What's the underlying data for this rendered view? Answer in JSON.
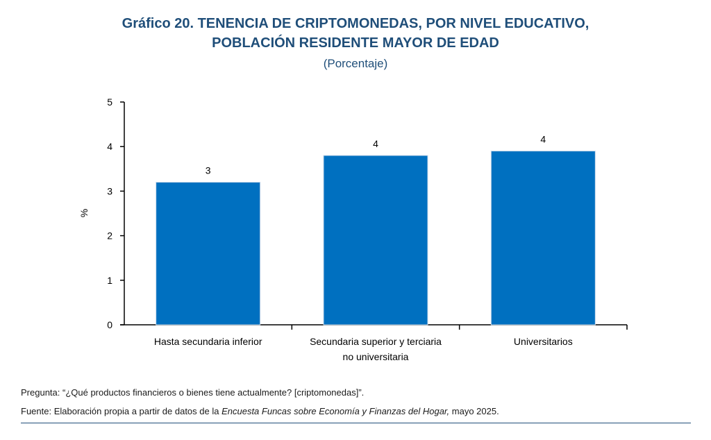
{
  "header": {
    "title_line1": "Gráfico 20. TENENCIA DE CRIPTOMONEDAS, POR NIVEL EDUCATIVO,",
    "title_line2": "POBLACIÓN RESIDENTE MAYOR DE EDAD",
    "subtitle": "(Porcentaje)"
  },
  "chart_data": {
    "type": "bar",
    "categories": [
      [
        "Hasta secundaria inferior"
      ],
      [
        "Secundaria superior y terciaria",
        "no universitaria"
      ],
      [
        "Universitarios"
      ]
    ],
    "values": [
      3.2,
      3.8,
      3.9
    ],
    "data_labels": [
      "3",
      "4",
      "4"
    ],
    "ylabel": "%",
    "xlabel": "",
    "ylim": [
      0,
      5
    ],
    "yticks": [
      0,
      1,
      2,
      3,
      4,
      5
    ],
    "grid": false,
    "bar_color": "#0070c0"
  },
  "footer": {
    "question": "Pregunta: “¿Qué productos financieros o bienes tiene actualmente? [criptomonedas]”.",
    "source_prefix": "Fuente: Elaboración propia a partir de datos de la ",
    "source_italic": "Encuesta Funcas sobre Economía y Finanzas del Hogar,",
    "source_suffix": " mayo 2025."
  }
}
